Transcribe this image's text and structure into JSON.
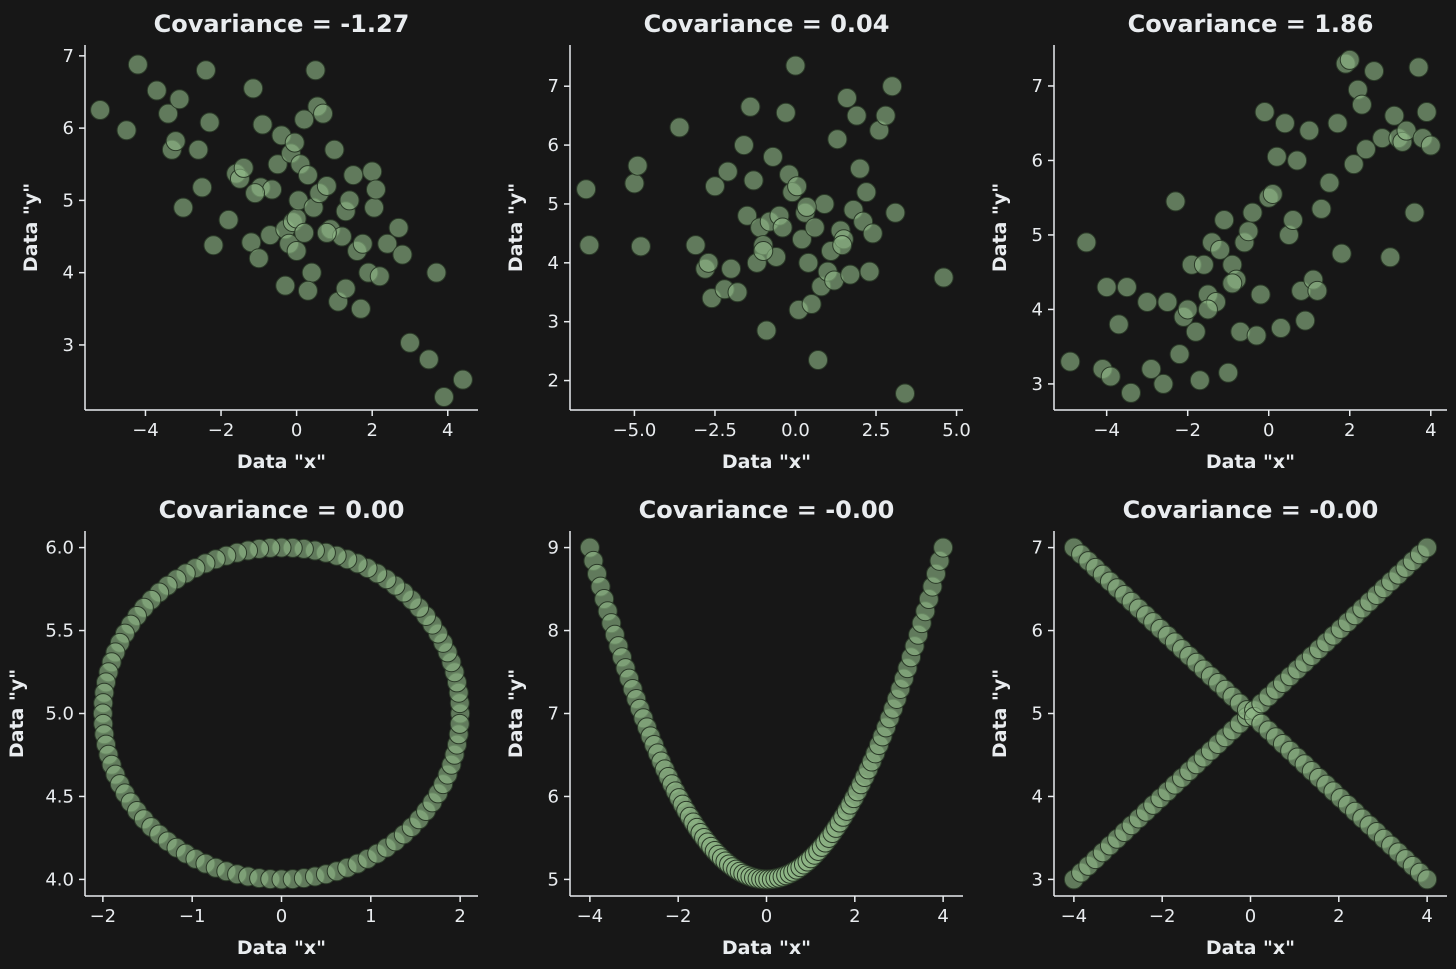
{
  "theme": {
    "background": "#171717",
    "foreground": "#e9ecef",
    "marker": "#8fb888"
  },
  "chart_data": [
    {
      "type": "scatter",
      "title": "Covariance = -1.27",
      "xlabel": "Data \"x\"",
      "ylabel": "Data \"y\"",
      "xlim": [
        -5.6,
        4.8
      ],
      "ylim": [
        2.1,
        7.15
      ],
      "xticks": [
        -4,
        -2,
        0,
        2,
        4
      ],
      "xtick_labels": [
        "−4",
        "−2",
        "0",
        "2",
        "4"
      ],
      "yticks": [
        3,
        4,
        5,
        6,
        7
      ],
      "ytick_labels": [
        "3",
        "4",
        "5",
        "6",
        "7"
      ],
      "x": [
        -5.2,
        -4.5,
        -4.2,
        -3.7,
        -3.4,
        -3.3,
        -3.2,
        -3.1,
        -3.0,
        -2.6,
        -2.5,
        -2.4,
        -2.3,
        -2.2,
        -1.8,
        -1.6,
        -1.5,
        -1.4,
        -1.2,
        -1.15,
        -1.0,
        -0.95,
        -0.9,
        -0.7,
        -0.65,
        -0.5,
        -0.4,
        -0.3,
        -0.2,
        -0.15,
        -0.1,
        -0.05,
        0.0,
        0.0,
        0.05,
        0.1,
        0.2,
        0.3,
        0.4,
        0.45,
        0.5,
        0.55,
        0.6,
        0.7,
        0.8,
        0.9,
        1.0,
        1.1,
        1.2,
        1.3,
        1.4,
        1.5,
        1.6,
        1.7,
        1.75,
        1.9,
        2.0,
        2.05,
        2.1,
        2.2,
        2.4,
        2.7,
        2.8,
        3.0,
        3.5,
        3.7,
        3.9,
        4.4,
        -1.1,
        0.3,
        0.8,
        1.3,
        -0.3,
        0.2
      ],
      "y": [
        6.25,
        5.97,
        6.88,
        6.52,
        6.2,
        5.7,
        5.82,
        6.4,
        4.9,
        5.7,
        5.18,
        6.8,
        6.08,
        4.38,
        4.73,
        5.37,
        5.3,
        5.45,
        4.42,
        6.55,
        4.2,
        5.18,
        6.05,
        4.52,
        5.15,
        5.5,
        5.9,
        4.6,
        4.4,
        5.65,
        4.7,
        5.8,
        4.75,
        4.3,
        5.0,
        5.5,
        4.55,
        5.35,
        4.0,
        4.9,
        6.8,
        6.3,
        5.1,
        6.2,
        5.2,
        4.6,
        5.7,
        3.6,
        4.5,
        4.85,
        5.0,
        5.35,
        4.3,
        3.5,
        4.4,
        4.0,
        5.4,
        4.9,
        5.15,
        3.95,
        4.4,
        4.62,
        4.25,
        3.03,
        2.8,
        4.0,
        2.28,
        2.52,
        5.1,
        3.75,
        4.55,
        3.78,
        3.82,
        6.12
      ]
    },
    {
      "type": "scatter",
      "title": "Covariance = 0.04",
      "xlabel": "Data \"x\"",
      "ylabel": "Data \"y\"",
      "xlim": [
        -7.0,
        5.2
      ],
      "ylim": [
        1.5,
        7.7
      ],
      "xticks": [
        -5,
        -2.5,
        0,
        2.5,
        5
      ],
      "xtick_labels": [
        "−5.0",
        "−2.5",
        "0.0",
        "2.5",
        "5.0"
      ],
      "yticks": [
        2,
        3,
        4,
        5,
        6,
        7
      ],
      "ytick_labels": [
        "2",
        "3",
        "4",
        "5",
        "6",
        "7"
      ],
      "x": [
        -6.4,
        -6.5,
        -5.0,
        -4.9,
        -4.8,
        -3.6,
        -3.1,
        -2.8,
        -2.7,
        -2.6,
        -2.5,
        -2.2,
        -2.1,
        -2.0,
        -1.8,
        -1.6,
        -1.5,
        -1.4,
        -1.3,
        -1.2,
        -1.1,
        -1.0,
        -0.9,
        -0.8,
        -0.7,
        -0.6,
        -0.5,
        -0.4,
        -0.3,
        -0.2,
        -0.1,
        0.0,
        0.05,
        0.1,
        0.2,
        0.3,
        0.4,
        0.5,
        0.6,
        0.7,
        0.8,
        0.9,
        1.0,
        1.1,
        1.2,
        1.3,
        1.4,
        1.5,
        1.6,
        1.7,
        1.8,
        1.9,
        2.0,
        2.1,
        2.2,
        2.3,
        2.4,
        2.6,
        2.8,
        3.0,
        3.1,
        3.4,
        4.6,
        0.35,
        1.45,
        -1.0
      ],
      "y": [
        4.3,
        5.25,
        5.35,
        5.65,
        4.28,
        6.3,
        4.3,
        3.9,
        4.0,
        3.4,
        5.3,
        3.55,
        5.55,
        3.9,
        3.5,
        6.0,
        4.8,
        6.65,
        5.4,
        4.0,
        4.6,
        4.3,
        2.85,
        4.7,
        5.8,
        4.1,
        4.8,
        4.6,
        6.55,
        5.5,
        5.2,
        7.35,
        5.3,
        3.2,
        4.4,
        4.85,
        4.0,
        3.3,
        4.6,
        2.35,
        3.6,
        5.0,
        3.85,
        4.2,
        3.7,
        6.1,
        4.55,
        4.4,
        6.8,
        3.8,
        4.9,
        6.5,
        5.6,
        4.7,
        5.2,
        3.85,
        4.5,
        6.25,
        6.5,
        7.0,
        4.85,
        1.78,
        3.75,
        4.95,
        4.3,
        4.2
      ]
    },
    {
      "type": "scatter",
      "title": "Covariance = 1.86",
      "xlabel": "Data \"x\"",
      "ylabel": "Data \"y\"",
      "xlim": [
        -5.3,
        4.4
      ],
      "ylim": [
        2.65,
        7.55
      ],
      "xticks": [
        -4,
        -2,
        0,
        2,
        4
      ],
      "xtick_labels": [
        "−4",
        "−2",
        "0",
        "2",
        "4"
      ],
      "yticks": [
        3,
        4,
        5,
        6,
        7
      ],
      "ytick_labels": [
        "3",
        "4",
        "5",
        "6",
        "7"
      ],
      "x": [
        -4.9,
        -4.5,
        -4.1,
        -4.0,
        -3.9,
        -3.7,
        -3.5,
        -3.4,
        -3.0,
        -2.9,
        -2.6,
        -2.5,
        -2.3,
        -2.2,
        -2.1,
        -2.0,
        -1.9,
        -1.8,
        -1.7,
        -1.6,
        -1.5,
        -1.4,
        -1.3,
        -1.2,
        -1.1,
        -1.0,
        -0.9,
        -0.8,
        -0.7,
        -0.6,
        -0.5,
        -0.4,
        -0.3,
        -0.2,
        -0.1,
        0.0,
        0.1,
        0.2,
        0.3,
        0.4,
        0.5,
        0.6,
        0.7,
        0.8,
        0.9,
        1.0,
        1.1,
        1.2,
        1.3,
        1.5,
        1.7,
        1.8,
        1.9,
        2.0,
        2.1,
        2.2,
        2.3,
        2.4,
        2.6,
        2.8,
        3.0,
        3.1,
        3.2,
        3.3,
        3.4,
        3.6,
        3.7,
        3.8,
        3.9,
        4.0,
        -1.5,
        -0.9
      ],
      "y": [
        3.3,
        4.9,
        3.2,
        4.3,
        3.1,
        3.8,
        4.3,
        2.88,
        4.1,
        3.2,
        3.0,
        4.1,
        5.45,
        3.4,
        3.9,
        4.0,
        4.6,
        3.7,
        3.05,
        4.6,
        4.2,
        4.9,
        4.1,
        4.8,
        5.2,
        3.15,
        4.6,
        4.4,
        3.7,
        4.9,
        5.05,
        5.3,
        3.65,
        4.2,
        6.65,
        5.5,
        5.55,
        6.05,
        3.75,
        6.5,
        5.0,
        5.2,
        6.0,
        4.25,
        3.85,
        6.4,
        4.4,
        4.25,
        5.35,
        5.7,
        6.5,
        4.75,
        7.3,
        7.35,
        5.95,
        6.95,
        6.75,
        6.15,
        7.2,
        6.3,
        4.7,
        6.6,
        6.3,
        6.25,
        6.4,
        5.3,
        7.25,
        6.3,
        6.65,
        6.2,
        4.0,
        4.35
      ]
    },
    {
      "type": "scatter",
      "title": "Covariance = 0.00",
      "xlabel": "Data \"x\"",
      "ylabel": "Data \"y\"",
      "xlim": [
        -2.2,
        2.2
      ],
      "ylim": [
        3.9,
        6.1
      ],
      "xticks": [
        -2,
        -1,
        0,
        1,
        2
      ],
      "xtick_labels": [
        "−2",
        "−1",
        "0",
        "1",
        "2"
      ],
      "yticks": [
        4.0,
        4.5,
        5.0,
        5.5,
        6.0
      ],
      "ytick_labels": [
        "4.0",
        "4.5",
        "5.0",
        "5.5",
        "6.0"
      ],
      "shape": "circle",
      "center": [
        0,
        5
      ],
      "radius_x": 2,
      "radius_y": 1,
      "n_points": 100
    },
    {
      "type": "scatter",
      "title": "Covariance = -0.00",
      "xlabel": "Data \"x\"",
      "ylabel": "Data \"y\"",
      "xlim": [
        -4.45,
        4.45
      ],
      "ylim": [
        4.8,
        9.2
      ],
      "xticks": [
        -4,
        -2,
        0,
        2,
        4
      ],
      "xtick_labels": [
        "−4",
        "−2",
        "0",
        "2",
        "4"
      ],
      "yticks": [
        5,
        6,
        7,
        8,
        9
      ],
      "ytick_labels": [
        "5",
        "6",
        "7",
        "8",
        "9"
      ],
      "shape": "parabola",
      "formula": "y = x^2/4 + 5",
      "x_range": [
        -4,
        4
      ],
      "n_points": 100
    },
    {
      "type": "scatter",
      "title": "Covariance = -0.00",
      "xlabel": "Data \"x\"",
      "ylabel": "Data \"y\"",
      "xlim": [
        -4.45,
        4.45
      ],
      "ylim": [
        2.8,
        7.2
      ],
      "xticks": [
        -4,
        -2,
        0,
        2,
        4
      ],
      "xtick_labels": [
        "−4",
        "−2",
        "0",
        "2",
        "4"
      ],
      "yticks": [
        3,
        4,
        5,
        6,
        7
      ],
      "ytick_labels": [
        "3",
        "4",
        "5",
        "6",
        "7"
      ],
      "shape": "cross",
      "formula": "y = 5 ± x/2",
      "x_range": [
        -4,
        4
      ],
      "n_points": 100
    }
  ]
}
